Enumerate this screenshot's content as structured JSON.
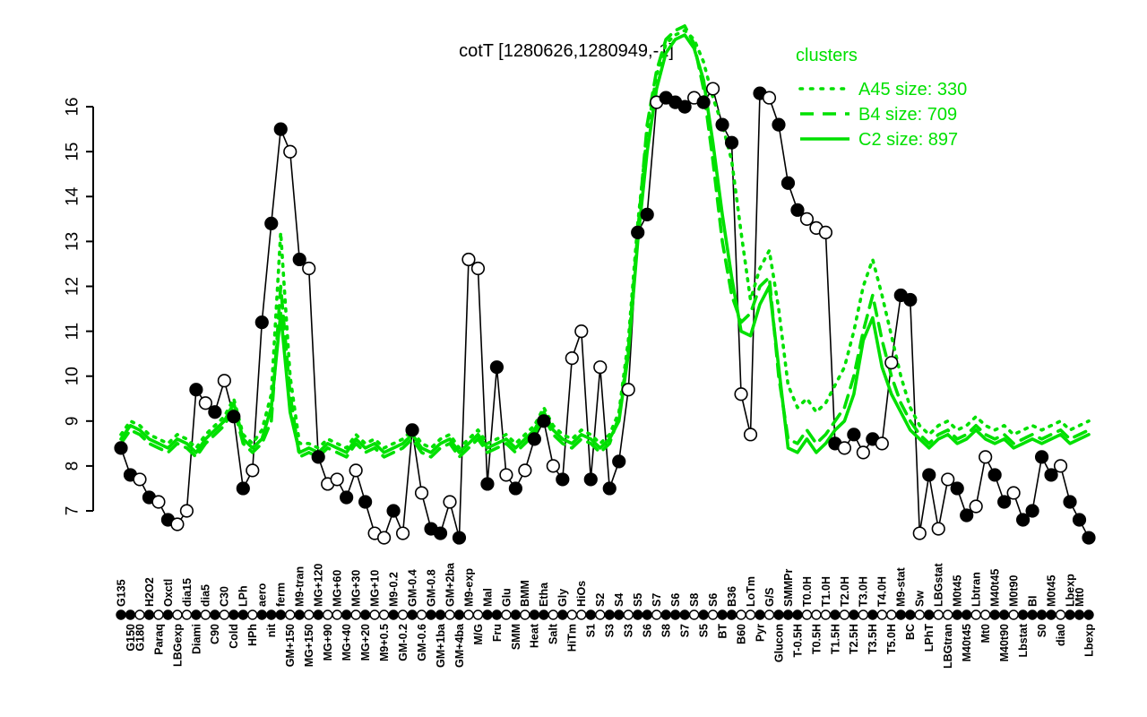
{
  "chart_data": {
    "type": "line",
    "title": "cotT [1280626,1280949,-1]",
    "xlabel": "",
    "ylabel": "",
    "ylim": [
      7,
      16
    ],
    "yticks": [
      7,
      8,
      9,
      10,
      11,
      12,
      13,
      14,
      15,
      16
    ],
    "grid": false,
    "colors": {
      "gene_line": "#000000",
      "cluster_green": "#00e000",
      "open_marker_fill": "#ffffff"
    },
    "legend": {
      "title": "clusters",
      "position": "top-right",
      "entries": [
        {
          "label": "A45 size: 330",
          "style": "dotted"
        },
        {
          "label": "B4 size: 709",
          "style": "dashed"
        },
        {
          "label": "C2 size: 897",
          "style": "solid"
        }
      ]
    },
    "categories": [
      "G135",
      "G150",
      "G180",
      "H2O2",
      "Paraq",
      "Oxctl",
      "LBGexp",
      "dia15",
      "Diami",
      "dia5",
      "C90",
      "C30",
      "Cold",
      "LPh",
      "HPh",
      "aero",
      "nit",
      "ferm",
      "GM+150",
      "M9-tran",
      "MG+150",
      "MG+120",
      "MG+90",
      "MG+60",
      "MG+40",
      "MG+30",
      "MG+20",
      "MG+10",
      "M9+0.5",
      "M9-0.2",
      "GM-0.2",
      "GM-0.4",
      "GM-0.6",
      "GM-0.8",
      "GM+1ba",
      "GM+2ba",
      "GM+4ba",
      "M9-exp",
      "M/G",
      "Mal",
      "Fru",
      "Glu",
      "SMM",
      "BMM",
      "Heat",
      "Etha",
      "Salt",
      "Gly",
      "HiTm",
      "HiOs",
      "S1",
      "S2",
      "S3",
      "S4",
      "S3",
      "S5",
      "S6",
      "S7",
      "S8",
      "S6",
      "S7",
      "S8",
      "S5",
      "S6",
      "BT",
      "B36",
      "B60",
      "LoTm",
      "Pyr",
      "G/S",
      "Glucon",
      "SMMPr",
      "T-0.5H",
      "T0.0H",
      "T0.5H",
      "T1.0H",
      "T1.5H",
      "T2.0H",
      "T2.5H",
      "T3.0H",
      "T3.5H",
      "T4.0H",
      "T5.0H",
      "M9-stat",
      "BC",
      "Sw",
      "LPhT",
      "LBGstat",
      "LBGtran",
      "M0t45",
      "M40t45",
      "Lbtran",
      "Mt0",
      "M40t45",
      "M40t90",
      "M0t90",
      "Lbstat",
      "BI",
      "S0",
      "M0t45",
      "dia0",
      "Lbexp",
      "Mt0",
      "Lbexp"
    ],
    "label_rows": "tbbtbtbtbtbtbtbtbtbtbtbtbtbtbtbtbtbtbtbtbtbtbtbtbtbtbtbtbtbtbtbtbtbtbtbtbtbtbtbtbtbtbtbtbtbtbtbtbtbtbttbtbtbtbtbtbtbtbtbtbt",
    "series": [
      {
        "name": "cotT",
        "role": "gene-profile",
        "marker": "circle",
        "values": [
          8.4,
          7.8,
          7.7,
          7.3,
          7.2,
          6.8,
          6.7,
          7.0,
          9.7,
          9.4,
          9.2,
          9.9,
          9.1,
          7.5,
          7.9,
          11.2,
          13.4,
          15.5,
          15.0,
          12.6,
          12.4,
          8.2,
          7.6,
          7.7,
          7.3,
          7.9,
          7.2,
          6.5,
          6.4,
          7.0,
          6.5,
          8.8,
          7.4,
          6.6,
          6.5,
          7.2,
          6.4,
          12.6,
          12.4,
          7.6,
          10.2,
          7.8,
          7.5,
          7.9,
          8.6,
          9.0,
          8.0,
          7.7,
          10.4,
          11.0,
          7.7,
          10.2,
          7.5,
          8.1,
          9.7,
          13.2,
          13.6,
          16.1,
          16.2,
          16.1,
          16.0,
          16.2,
          16.1,
          16.4,
          15.6,
          15.2,
          9.6,
          8.7,
          16.3,
          16.2,
          15.6,
          14.3,
          13.7,
          13.5,
          13.3,
          13.2,
          8.5,
          8.4,
          8.7,
          8.3,
          8.6,
          8.5,
          10.3,
          11.8,
          11.7,
          6.5,
          7.8,
          6.6,
          7.7,
          7.5,
          6.9,
          7.1,
          8.2,
          7.8,
          7.2,
          7.4,
          6.8,
          7.0,
          8.2,
          7.8,
          8.0,
          7.2,
          6.8,
          6.4
        ],
        "filled": [
          1,
          1,
          0,
          1,
          0,
          1,
          0,
          0,
          1,
          0,
          1,
          0,
          1,
          1,
          0,
          1,
          1,
          1,
          0,
          1,
          0,
          1,
          0,
          0,
          1,
          0,
          1,
          0,
          0,
          1,
          0,
          1,
          0,
          1,
          1,
          0,
          1,
          0,
          0,
          1,
          1,
          0,
          1,
          0,
          1,
          1,
          0,
          1,
          0,
          0,
          1,
          0,
          1,
          1,
          0,
          1,
          1,
          0,
          1,
          1,
          1,
          0,
          1,
          0,
          1,
          1,
          0,
          0,
          1,
          0,
          1,
          1,
          1,
          0,
          0,
          0,
          1,
          0,
          1,
          0,
          1,
          0,
          0,
          1,
          1,
          0,
          1,
          0,
          0,
          1,
          1,
          0,
          0,
          1,
          1,
          0,
          1,
          1,
          1,
          1,
          0,
          1,
          1,
          1
        ]
      },
      {
        "name": "A45",
        "role": "cluster-mean",
        "line_style": "dotted",
        "values": [
          8.7,
          9.0,
          8.9,
          8.7,
          8.6,
          8.5,
          8.7,
          8.6,
          8.4,
          8.7,
          8.9,
          9.1,
          9.5,
          8.7,
          8.5,
          8.8,
          9.6,
          13.2,
          10.0,
          8.5,
          8.5,
          8.4,
          8.6,
          8.5,
          8.4,
          8.7,
          8.5,
          8.6,
          8.4,
          8.5,
          8.6,
          8.8,
          8.5,
          8.4,
          8.6,
          8.7,
          8.4,
          8.6,
          8.8,
          8.5,
          8.6,
          8.7,
          8.5,
          8.7,
          8.9,
          9.3,
          8.9,
          8.7,
          8.6,
          8.8,
          8.7,
          8.5,
          8.7,
          9.2,
          10.8,
          13.4,
          15.4,
          16.7,
          17.4,
          17.6,
          17.7,
          17.5,
          17.0,
          16.2,
          15.6,
          14.8,
          13.2,
          11.7,
          12.4,
          12.8,
          11.5,
          9.8,
          9.3,
          9.5,
          9.2,
          9.4,
          9.8,
          10.2,
          11.0,
          12.0,
          12.6,
          11.8,
          10.9,
          10.0,
          9.3,
          8.9,
          8.7,
          8.9,
          9.0,
          8.8,
          8.9,
          9.1,
          8.9,
          8.8,
          8.9,
          8.7,
          8.8,
          8.9,
          8.8,
          8.9,
          9.0,
          8.8,
          8.9,
          9.0
        ]
      },
      {
        "name": "B4",
        "role": "cluster-mean",
        "line_style": "dashed",
        "values": [
          8.5,
          8.8,
          8.7,
          8.5,
          8.4,
          8.3,
          8.5,
          8.4,
          8.2,
          8.5,
          8.7,
          8.9,
          9.3,
          8.5,
          8.3,
          8.5,
          9.0,
          12.0,
          9.6,
          8.2,
          8.3,
          8.2,
          8.4,
          8.3,
          8.2,
          8.5,
          8.3,
          8.4,
          8.2,
          8.3,
          8.4,
          8.6,
          8.3,
          8.2,
          8.4,
          8.5,
          8.2,
          8.4,
          8.6,
          8.3,
          8.4,
          8.5,
          8.3,
          8.5,
          8.7,
          9.1,
          8.7,
          8.5,
          8.4,
          8.6,
          8.5,
          8.3,
          8.5,
          9.1,
          10.6,
          13.2,
          15.6,
          16.8,
          17.5,
          17.7,
          17.8,
          17.4,
          16.4,
          14.8,
          13.0,
          11.8,
          11.2,
          11.4,
          12.0,
          12.2,
          10.0,
          8.6,
          8.5,
          8.8,
          8.5,
          8.7,
          9.0,
          9.3,
          10.0,
          11.0,
          11.8,
          10.8,
          10.0,
          9.4,
          9.0,
          8.7,
          8.5,
          8.7,
          8.8,
          8.6,
          8.7,
          8.9,
          8.7,
          8.6,
          8.7,
          8.5,
          8.6,
          8.7,
          8.6,
          8.7,
          8.8,
          8.6,
          8.7,
          8.8
        ]
      },
      {
        "name": "C2",
        "role": "cluster-mean",
        "line_style": "solid",
        "values": [
          8.6,
          8.9,
          8.8,
          8.6,
          8.5,
          8.4,
          8.6,
          8.5,
          8.3,
          8.6,
          8.8,
          9.0,
          9.4,
          8.6,
          8.4,
          8.6,
          9.3,
          11.4,
          9.2,
          8.3,
          8.4,
          8.3,
          8.5,
          8.4,
          8.3,
          8.6,
          8.4,
          8.5,
          8.3,
          8.4,
          8.5,
          8.7,
          8.4,
          8.3,
          8.5,
          8.6,
          8.3,
          8.5,
          8.7,
          8.4,
          8.5,
          8.6,
          8.4,
          8.6,
          8.8,
          9.2,
          8.8,
          8.6,
          8.5,
          8.7,
          8.6,
          8.4,
          8.6,
          9.0,
          10.5,
          13.0,
          15.0,
          16.4,
          17.2,
          17.5,
          17.6,
          17.3,
          16.6,
          15.2,
          13.6,
          12.2,
          11.0,
          10.9,
          11.6,
          12.0,
          10.2,
          8.4,
          8.3,
          8.6,
          8.3,
          8.5,
          8.8,
          9.0,
          9.6,
          10.8,
          11.3,
          10.2,
          9.6,
          9.2,
          8.8,
          8.6,
          8.4,
          8.6,
          8.7,
          8.5,
          8.6,
          8.8,
          8.6,
          8.5,
          8.6,
          8.4,
          8.5,
          8.6,
          8.5,
          8.6,
          8.7,
          8.5,
          8.6,
          8.7
        ]
      }
    ]
  }
}
